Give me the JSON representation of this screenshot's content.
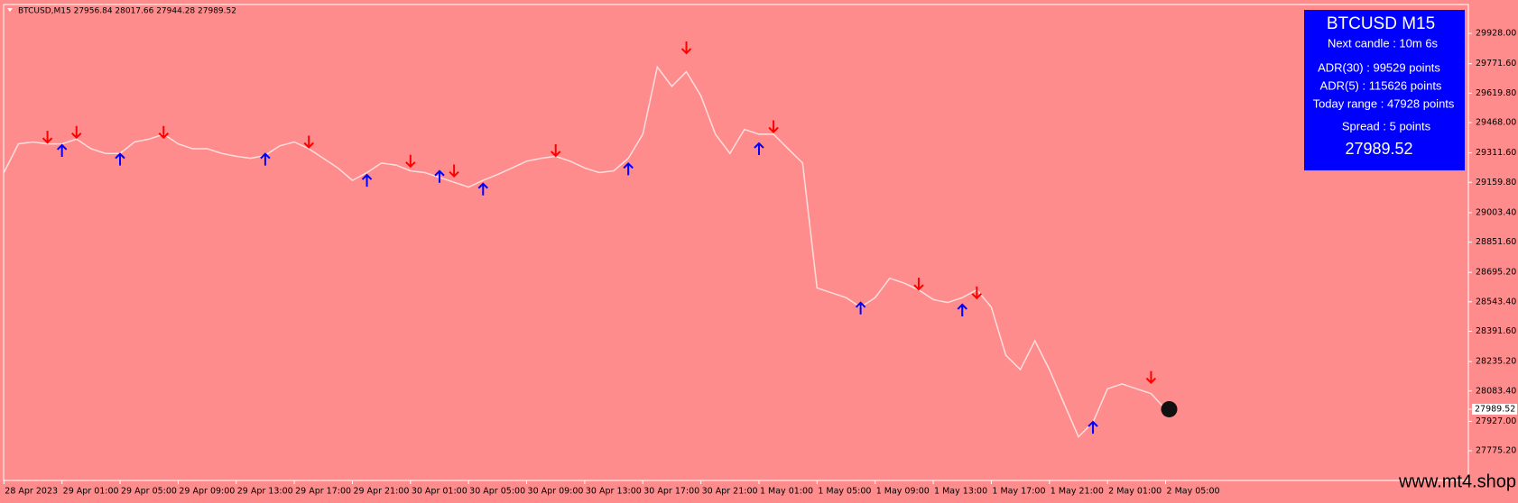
{
  "chart_data": {
    "type": "line",
    "title": "BTCUSD,M15  27956.84 28017.66 27944.28 27989.52",
    "categories": [
      "28 Apr 2023",
      null,
      null,
      null,
      "29 Apr 01:00",
      null,
      null,
      null,
      "29 Apr 05:00",
      null,
      null,
      null,
      "29 Apr 09:00",
      null,
      null,
      null,
      "29 Apr 13:00",
      null,
      null,
      null,
      "29 Apr 17:00",
      null,
      null,
      null,
      "29 Apr 21:00",
      null,
      null,
      null,
      "30 Apr 01:00",
      null,
      null,
      null,
      "30 Apr 05:00",
      null,
      null,
      null,
      "30 Apr 09:00",
      null,
      null,
      null,
      "30 Apr 13:00",
      null,
      null,
      null,
      "30 Apr 17:00",
      null,
      null,
      null,
      "30 Apr 21:00",
      null,
      null,
      null,
      "1 May 01:00",
      null,
      null,
      null,
      "1 May 05:00",
      null,
      null,
      null,
      "1 May 09:00",
      null,
      null,
      null,
      "1 May 13:00",
      null,
      null,
      null,
      "1 May 17:00",
      null,
      null,
      null,
      "1 May 21:00",
      null,
      null,
      null,
      "2 May 01:00",
      null,
      null,
      null,
      "2 May 05:00"
    ],
    "values": [
      29210,
      29358,
      29368,
      29358,
      29358,
      29383,
      29333,
      29309,
      29309,
      29368,
      29383,
      29408,
      29358,
      29333,
      29333,
      29309,
      29294,
      29284,
      29299,
      29348,
      29368,
      29333,
      29284,
      29234,
      29170,
      29210,
      29259,
      29249,
      29219,
      29210,
      29185,
      29160,
      29135,
      29170,
      29200,
      29234,
      29269,
      29284,
      29294,
      29269,
      29234,
      29210,
      29219,
      29284,
      29408,
      29755,
      29655,
      29730,
      29606,
      29408,
      29309,
      29433,
      29408,
      29408,
      29333,
      29259,
      28615,
      28590,
      28565,
      28516,
      28565,
      28665,
      28640,
      28605,
      28555,
      28540,
      28565,
      28605,
      28516,
      28268,
      28194,
      28342,
      28194,
      28020,
      27847,
      27921,
      28095,
      28120,
      28095,
      28070,
      27989.52
    ],
    "color": "#ffdede",
    "down_arrows": {
      "color": "#ff0000",
      "values": [
        null,
        null,
        null,
        29393,
        null,
        29418,
        null,
        null,
        null,
        null,
        null,
        29418,
        null,
        null,
        null,
        null,
        null,
        null,
        null,
        null,
        null,
        29368,
        null,
        null,
        null,
        null,
        null,
        null,
        29269,
        null,
        null,
        29219,
        null,
        null,
        null,
        null,
        null,
        null,
        29324,
        null,
        null,
        null,
        null,
        null,
        null,
        null,
        null,
        29854,
        null,
        null,
        null,
        null,
        null,
        29447,
        null,
        null,
        null,
        null,
        null,
        null,
        null,
        null,
        null,
        28635,
        null,
        null,
        null,
        28590,
        null,
        null,
        null,
        null,
        null,
        null,
        null,
        null,
        null,
        null,
        null,
        28154,
        null
      ]
    },
    "up_arrows": {
      "color": "#0000ff",
      "values": [
        null,
        null,
        null,
        null,
        29324,
        null,
        null,
        null,
        29279,
        null,
        null,
        null,
        null,
        null,
        null,
        null,
        null,
        null,
        29279,
        null,
        null,
        null,
        null,
        null,
        null,
        29170,
        null,
        null,
        null,
        null,
        29190,
        null,
        null,
        29125,
        null,
        null,
        null,
        null,
        null,
        null,
        null,
        null,
        null,
        29229,
        null,
        null,
        null,
        null,
        null,
        null,
        null,
        null,
        29333,
        null,
        null,
        null,
        null,
        null,
        null,
        28511,
        null,
        null,
        null,
        null,
        null,
        null,
        28501,
        null,
        null,
        null,
        null,
        null,
        null,
        null,
        null,
        27896,
        null,
        null,
        null,
        null,
        null
      ]
    },
    "ylim": [
      27622,
      30077
    ],
    "yticks": [
      {
        "value": 29928,
        "label": "29928.00"
      },
      {
        "value": 29771.6,
        "label": "29771.60"
      },
      {
        "value": 29619.8,
        "label": "29619.80"
      },
      {
        "value": 29468,
        "label": "29468.00"
      },
      {
        "value": 29311.6,
        "label": "29311.60"
      },
      {
        "value": 29159.8,
        "label": "29159.80"
      },
      {
        "value": 29003.4,
        "label": "29003.40"
      },
      {
        "value": 28851.6,
        "label": "28851.60"
      },
      {
        "value": 28695.2,
        "label": "28695.20"
      },
      {
        "value": 28543.4,
        "label": "28543.40"
      },
      {
        "value": 28391.6,
        "label": "28391.60"
      },
      {
        "value": 28235.2,
        "label": "28235.20"
      },
      {
        "value": 28083.4,
        "label": "28083.40"
      },
      {
        "value": 27927,
        "label": "27927.00"
      },
      {
        "value": 27775.2,
        "label": "27775.20"
      }
    ],
    "current_price": 27989.52,
    "grid": false
  },
  "panel": {
    "title": "BTCUSD M15",
    "next_candle": "Next candle : 10m 6s",
    "adr30": "ADR(30) : 99529 points",
    "adr5": "ADR(5) : 115626 points",
    "today_range": "Today range : 47928 points",
    "spread": "Spread : 5 points",
    "price": "27989.52"
  },
  "watermark": "www.mt4.shop"
}
